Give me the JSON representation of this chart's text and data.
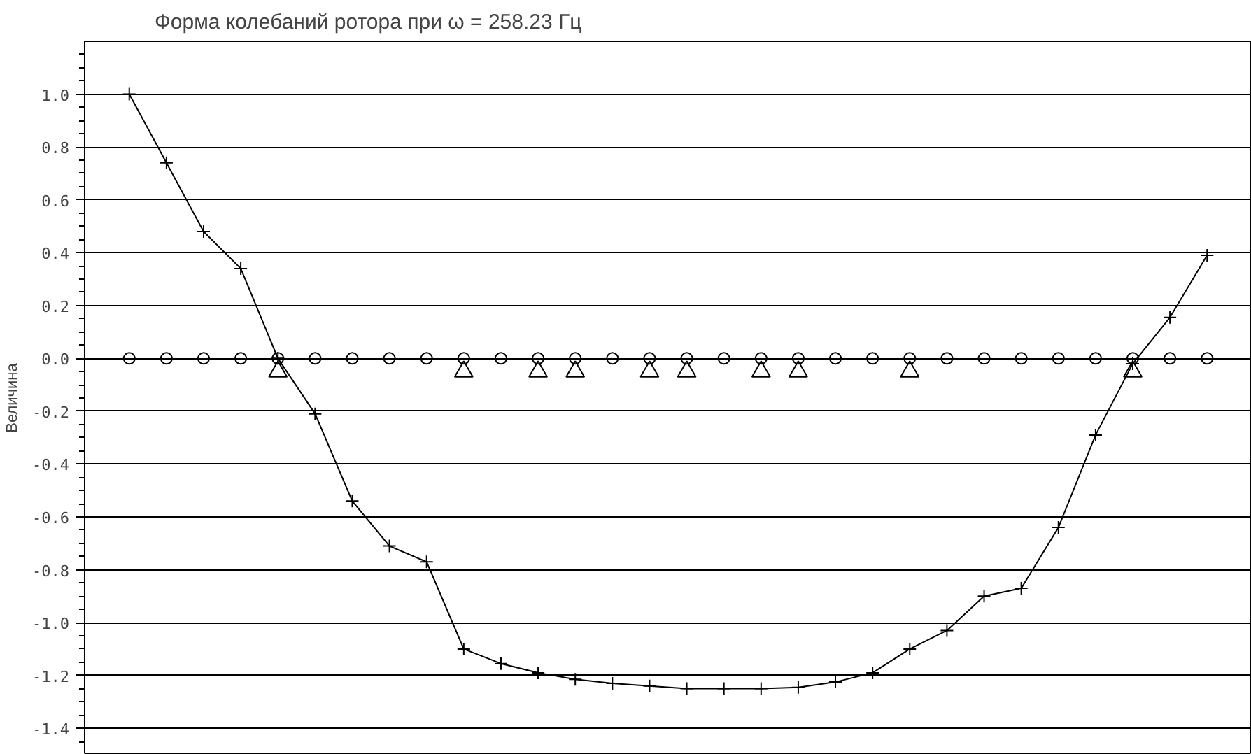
{
  "chart_data": {
    "type": "line",
    "title": "Форма колебаний ротора при  ω  =  258.23 Гц",
    "ylabel": "Величина",
    "categories": [
      null,
      null,
      null,
      null,
      null,
      null,
      null,
      null,
      null,
      null,
      null,
      null,
      null,
      null,
      null,
      null,
      null,
      null,
      null,
      null,
      null,
      null,
      null,
      null,
      null,
      null,
      null,
      null,
      null,
      null
    ],
    "ylim": [
      -1.5,
      1.2
    ],
    "yticks": [
      {
        "value": 1.0,
        "label": "1.0"
      },
      {
        "value": 0.8,
        "label": "0.8"
      },
      {
        "value": 0.6,
        "label": "0.6"
      },
      {
        "value": 0.4,
        "label": "0.4"
      },
      {
        "value": 0.2,
        "label": "0.2"
      },
      {
        "value": 0.0,
        "label": "0.0"
      },
      {
        "value": -0.2,
        "label": "-0.2"
      },
      {
        "value": -0.4,
        "label": "-0.4"
      },
      {
        "value": -0.6,
        "label": "-0.6"
      },
      {
        "value": -0.8,
        "label": "-0.8"
      },
      {
        "value": -1.0,
        "label": "-1.0"
      },
      {
        "value": -1.2,
        "label": "-1.2"
      },
      {
        "value": -1.4,
        "label": "-1.4"
      }
    ],
    "tick_labels": "y",
    "grid": "y",
    "series": [
      {
        "marker": "cross",
        "color": "#000000",
        "values": [
          1.0,
          0.74,
          0.48,
          0.34,
          0.0,
          -0.21,
          -0.54,
          -0.71,
          -0.77,
          -1.1,
          -1.155,
          -1.19,
          -1.215,
          -1.23,
          -1.24,
          -1.25,
          -1.25,
          -1.25,
          -1.245,
          -1.225,
          -1.19,
          -1.1,
          -1.03,
          -0.9,
          -0.87,
          -0.64,
          -0.29,
          -0.02,
          0.155,
          0.39
        ]
      },
      {
        "type": "scatter",
        "marker": "circle",
        "color": "#000000",
        "values": [
          0,
          0,
          0,
          0,
          0,
          0,
          0,
          0,
          0,
          0,
          0,
          0,
          0,
          0,
          0,
          0,
          0,
          0,
          0,
          0,
          0,
          0,
          0,
          0,
          0,
          0,
          0,
          0,
          0,
          0
        ]
      },
      {
        "type": "scatter",
        "marker": "triangle",
        "color": "#000000",
        "values": [
          null,
          null,
          null,
          null,
          -0.05,
          null,
          null,
          null,
          null,
          -0.05,
          null,
          -0.05,
          -0.05,
          null,
          -0.05,
          -0.05,
          null,
          -0.05,
          -0.05,
          null,
          null,
          -0.05,
          null,
          null,
          null,
          null,
          null,
          -0.05,
          null,
          null
        ]
      }
    ]
  }
}
